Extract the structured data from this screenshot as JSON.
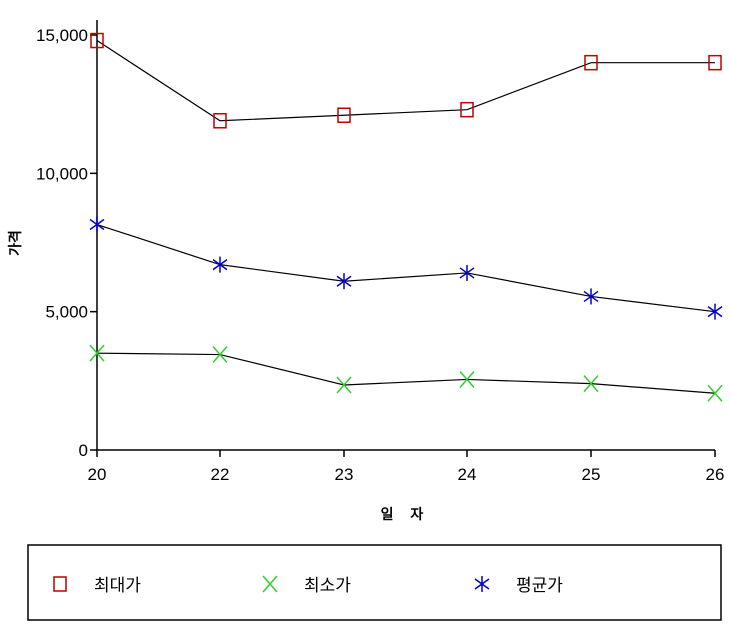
{
  "chart_data": {
    "type": "line",
    "x": [
      "20",
      "22",
      "23",
      "24",
      "25",
      "26"
    ],
    "xlabel": "일 자",
    "ylabel": "가격",
    "ylim": [
      0,
      15000
    ],
    "yticks": [
      "0",
      "5,000",
      "10,000",
      "15,000"
    ],
    "grid": false,
    "legend_position": "bottom",
    "series": [
      {
        "name": "최대가",
        "values": [
          14800,
          11900,
          12100,
          12300,
          14000,
          14000
        ],
        "color": "#c00000",
        "marker": "square"
      },
      {
        "name": "최소가",
        "values": [
          3500,
          3450,
          2350,
          2550,
          2400,
          2050
        ],
        "color": "#33cc33",
        "marker": "x"
      },
      {
        "name": "평균가",
        "values": [
          8150,
          6700,
          6100,
          6400,
          5550,
          5000
        ],
        "color": "#0000cc",
        "marker": "asterisk"
      }
    ]
  }
}
